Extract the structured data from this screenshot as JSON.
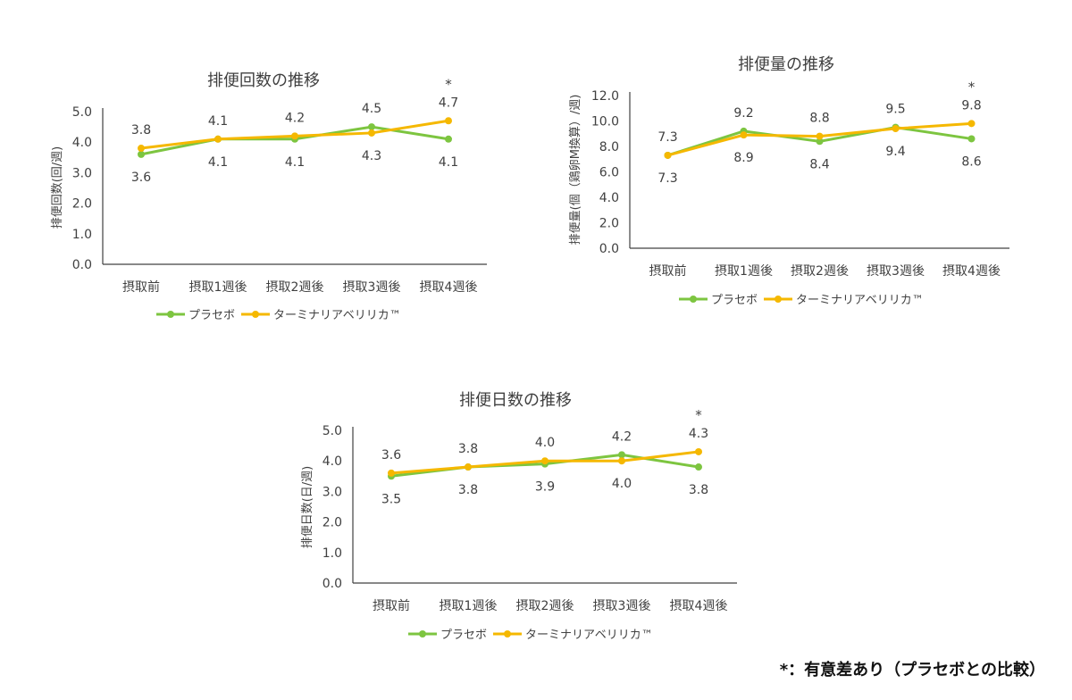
{
  "chart_data": [
    {
      "type": "line",
      "title": "排便回数の推移",
      "ylabel": "排便回数(回/週)",
      "categories": [
        "摂取前",
        "摂取1週後",
        "摂取2週後",
        "摂取3週後",
        "摂取4週後"
      ],
      "yticks": [
        "0.0",
        "1.0",
        "2.0",
        "3.0",
        "4.0",
        "5.0"
      ],
      "ylim": [
        0,
        5
      ],
      "series": [
        {
          "name": "プラセボ",
          "color": "#7DC540",
          "values": [
            3.6,
            4.1,
            4.1,
            4.5,
            4.1
          ],
          "labels": [
            "3.6",
            "4.1",
            "4.1",
            "4.5",
            "4.1"
          ]
        },
        {
          "name": "ターミナリアベリリカ™",
          "color": "#F5B800",
          "values": [
            3.8,
            4.1,
            4.2,
            4.3,
            4.7
          ],
          "labels": [
            "3.8",
            "4.1",
            "4.2",
            "4.3",
            "4.7"
          ]
        }
      ],
      "significance": {
        "index": 4,
        "mark": "*"
      }
    },
    {
      "type": "line",
      "title": "排便量の推移",
      "ylabel": "排便量(個（鶏卵M換算）/週)",
      "categories": [
        "摂取前",
        "摂取1週後",
        "摂取2週後",
        "摂取3週後",
        "摂取4週後"
      ],
      "yticks": [
        "0.0",
        "2.0",
        "4.0",
        "6.0",
        "8.0",
        "10.0",
        "12.0"
      ],
      "ylim": [
        0,
        12
      ],
      "series": [
        {
          "name": "プラセボ",
          "color": "#7DC540",
          "values": [
            7.3,
            9.2,
            8.4,
            9.5,
            8.6
          ],
          "labels": [
            "7.3",
            "9.2",
            "8.4",
            "9.5",
            "8.6"
          ]
        },
        {
          "name": "ターミナリアベリリカ™",
          "color": "#F5B800",
          "values": [
            7.3,
            8.9,
            8.8,
            9.4,
            9.8
          ],
          "labels": [
            "7.3",
            "8.9",
            "8.8",
            "9.4",
            "9.8"
          ]
        }
      ],
      "significance": {
        "index": 4,
        "mark": "*"
      }
    },
    {
      "type": "line",
      "title": "排便日数の推移",
      "ylabel": "排便日数(日/週)",
      "categories": [
        "摂取前",
        "摂取1週後",
        "摂取2週後",
        "摂取3週後",
        "摂取4週後"
      ],
      "yticks": [
        "0.0",
        "1.0",
        "2.0",
        "3.0",
        "4.0",
        "5.0"
      ],
      "ylim": [
        0,
        5
      ],
      "series": [
        {
          "name": "プラセボ",
          "color": "#7DC540",
          "values": [
            3.5,
            3.8,
            3.9,
            4.2,
            3.8
          ],
          "labels": [
            "3.5",
            "3.8",
            "3.9",
            "4.2",
            "3.8"
          ]
        },
        {
          "name": "ターミナリアベリリカ™",
          "color": "#F5B800",
          "values": [
            3.6,
            3.8,
            4.0,
            4.0,
            4.3
          ],
          "labels": [
            "3.6",
            "3.8",
            "4.0",
            "4.0",
            "4.3"
          ]
        }
      ],
      "significance": {
        "index": 4,
        "mark": "*"
      }
    }
  ],
  "footnote": "*：有意差あり（プラセボとの比較）"
}
